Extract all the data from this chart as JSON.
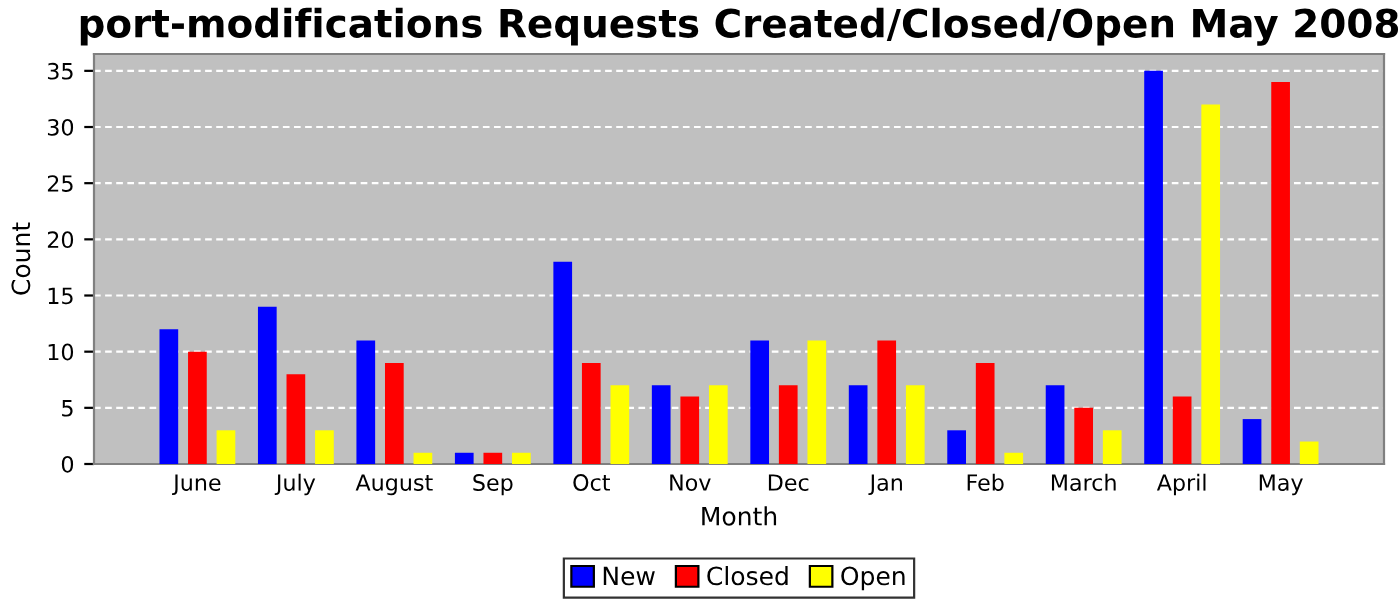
{
  "chart_data": {
    "type": "bar",
    "title": "port-modifications Requests Created/Closed/Open May 2008",
    "xlabel": "Month",
    "ylabel": "Count",
    "categories": [
      "June",
      "July",
      "August",
      "Sep",
      "Oct",
      "Nov",
      "Dec",
      "Jan",
      "Feb",
      "March",
      "April",
      "May"
    ],
    "series": [
      {
        "name": "New",
        "color": "#0000ff",
        "values": [
          12,
          14,
          11,
          1,
          18,
          7,
          11,
          7,
          3,
          7,
          35,
          4
        ]
      },
      {
        "name": "Closed",
        "color": "#ff0000",
        "values": [
          10,
          8,
          9,
          1,
          9,
          6,
          7,
          11,
          9,
          5,
          6,
          34
        ]
      },
      {
        "name": "Open",
        "color": "#ffff00",
        "values": [
          3,
          3,
          1,
          1,
          7,
          7,
          11,
          7,
          1,
          3,
          32,
          2
        ]
      }
    ],
    "ylim": [
      0,
      36.5
    ],
    "yticks": [
      0,
      5,
      10,
      15,
      20,
      25,
      30,
      35
    ],
    "grid": "y",
    "legend": "bottom"
  }
}
